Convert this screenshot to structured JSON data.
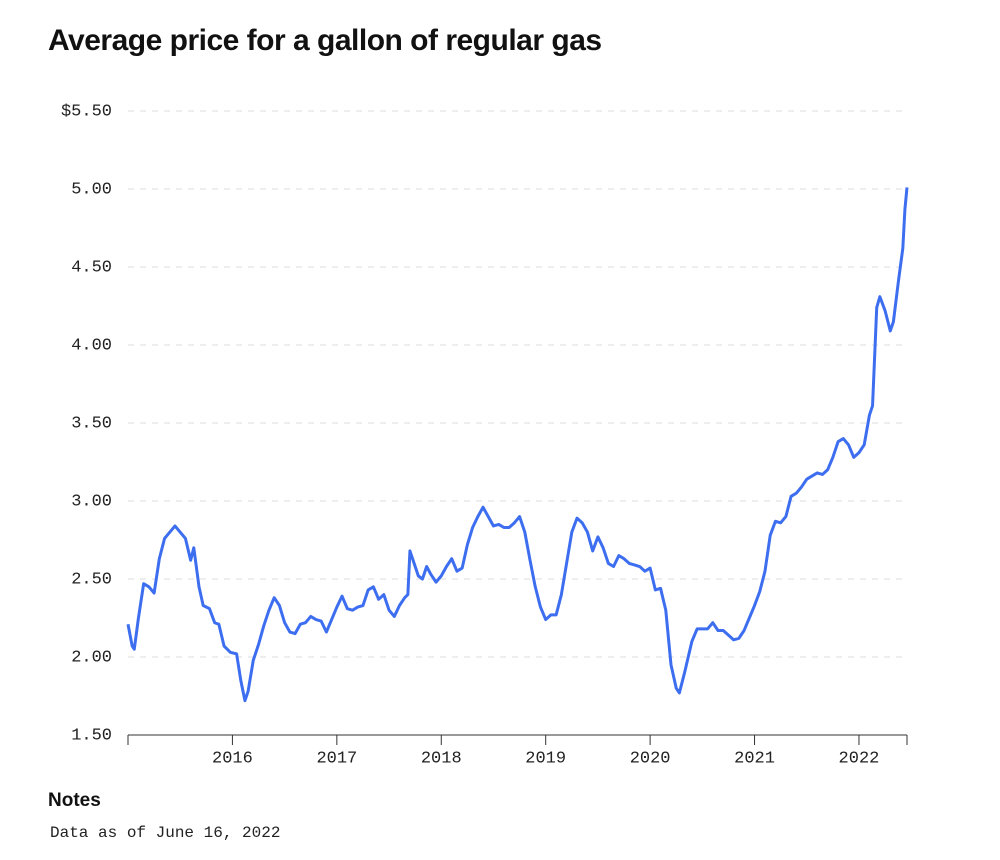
{
  "chart_data": {
    "type": "line",
    "title": "Average price for a gallon of regular gas",
    "notes_heading": "Notes",
    "notes": "Data as of June 16, 2022",
    "x": [
      2015.0,
      2015.04,
      2015.06,
      2015.1,
      2015.15,
      2015.2,
      2015.25,
      2015.3,
      2015.35,
      2015.4,
      2015.45,
      2015.5,
      2015.55,
      2015.6,
      2015.63,
      2015.68,
      2015.72,
      2015.78,
      2015.83,
      2015.87,
      2015.92,
      2015.98,
      2016.04,
      2016.08,
      2016.12,
      2016.15,
      2016.2,
      2016.25,
      2016.3,
      2016.35,
      2016.4,
      2016.45,
      2016.5,
      2016.55,
      2016.6,
      2016.65,
      2016.7,
      2016.75,
      2016.8,
      2016.85,
      2016.9,
      2016.95,
      2017.0,
      2017.05,
      2017.1,
      2017.15,
      2017.2,
      2017.25,
      2017.3,
      2017.35,
      2017.4,
      2017.45,
      2017.5,
      2017.55,
      2017.6,
      2017.65,
      2017.68,
      2017.7,
      2017.73,
      2017.78,
      2017.82,
      2017.86,
      2017.9,
      2017.95,
      2018.0,
      2018.05,
      2018.1,
      2018.15,
      2018.2,
      2018.25,
      2018.3,
      2018.35,
      2018.4,
      2018.45,
      2018.5,
      2018.55,
      2018.6,
      2018.65,
      2018.7,
      2018.75,
      2018.8,
      2018.85,
      2018.9,
      2018.95,
      2019.0,
      2019.05,
      2019.1,
      2019.15,
      2019.2,
      2019.25,
      2019.3,
      2019.35,
      2019.4,
      2019.45,
      2019.5,
      2019.55,
      2019.6,
      2019.65,
      2019.7,
      2019.75,
      2019.8,
      2019.85,
      2019.9,
      2019.95,
      2020.0,
      2020.05,
      2020.1,
      2020.15,
      2020.2,
      2020.25,
      2020.28,
      2020.33,
      2020.4,
      2020.45,
      2020.5,
      2020.55,
      2020.6,
      2020.65,
      2020.7,
      2020.75,
      2020.8,
      2020.85,
      2020.9,
      2020.95,
      2021.0,
      2021.05,
      2021.1,
      2021.15,
      2021.2,
      2021.25,
      2021.3,
      2021.35,
      2021.4,
      2021.45,
      2021.5,
      2021.55,
      2021.6,
      2021.65,
      2021.7,
      2021.75,
      2021.8,
      2021.85,
      2021.9,
      2021.95,
      2022.0,
      2022.05,
      2022.1,
      2022.13,
      2022.17,
      2022.2,
      2022.25,
      2022.3,
      2022.33,
      2022.38,
      2022.42,
      2022.44,
      2022.46
    ],
    "series": [
      {
        "color": "#3d6ef0",
        "values": [
          2.21,
          2.07,
          2.05,
          2.25,
          2.47,
          2.45,
          2.41,
          2.63,
          2.76,
          2.8,
          2.84,
          2.8,
          2.76,
          2.62,
          2.7,
          2.45,
          2.33,
          2.31,
          2.22,
          2.21,
          2.07,
          2.03,
          2.02,
          1.85,
          1.72,
          1.78,
          1.98,
          2.08,
          2.2,
          2.3,
          2.38,
          2.33,
          2.22,
          2.16,
          2.15,
          2.21,
          2.22,
          2.26,
          2.24,
          2.23,
          2.16,
          2.24,
          2.32,
          2.39,
          2.31,
          2.3,
          2.32,
          2.33,
          2.43,
          2.45,
          2.37,
          2.4,
          2.3,
          2.26,
          2.33,
          2.38,
          2.4,
          2.68,
          2.62,
          2.52,
          2.5,
          2.58,
          2.53,
          2.48,
          2.52,
          2.58,
          2.63,
          2.55,
          2.57,
          2.72,
          2.83,
          2.9,
          2.96,
          2.9,
          2.84,
          2.85,
          2.83,
          2.83,
          2.86,
          2.9,
          2.8,
          2.62,
          2.45,
          2.32,
          2.24,
          2.27,
          2.27,
          2.4,
          2.6,
          2.8,
          2.89,
          2.86,
          2.8,
          2.68,
          2.77,
          2.7,
          2.6,
          2.58,
          2.65,
          2.63,
          2.6,
          2.59,
          2.58,
          2.55,
          2.57,
          2.43,
          2.44,
          2.3,
          1.95,
          1.8,
          1.77,
          1.9,
          2.1,
          2.18,
          2.18,
          2.18,
          2.22,
          2.17,
          2.17,
          2.14,
          2.11,
          2.12,
          2.17,
          2.25,
          2.33,
          2.42,
          2.55,
          2.78,
          2.87,
          2.86,
          2.9,
          3.03,
          3.05,
          3.09,
          3.14,
          3.16,
          3.18,
          3.17,
          3.2,
          3.28,
          3.38,
          3.4,
          3.36,
          3.28,
          3.31,
          3.36,
          3.55,
          3.61,
          4.24,
          4.31,
          4.22,
          4.09,
          4.15,
          4.42,
          4.62,
          4.87,
          5.01
        ]
      }
    ],
    "xlim": [
      2015.0,
      2022.46
    ],
    "xticks": [
      2016,
      2017,
      2018,
      2019,
      2020,
      2021,
      2022
    ],
    "ylim": [
      1.5,
      5.5
    ],
    "yticks": [
      {
        "value": 1.5,
        "label": "1.50"
      },
      {
        "value": 2,
        "label": "2.00"
      },
      {
        "value": 2.5,
        "label": "2.50"
      },
      {
        "value": 3,
        "label": "3.00"
      },
      {
        "value": 3.5,
        "label": "3.50"
      },
      {
        "value": 4,
        "label": "4.00"
      },
      {
        "value": 4.5,
        "label": "4.50"
      },
      {
        "value": 5,
        "label": "5.00"
      },
      {
        "value": 5.5,
        "label": "$5.50"
      }
    ],
    "grid": true
  }
}
